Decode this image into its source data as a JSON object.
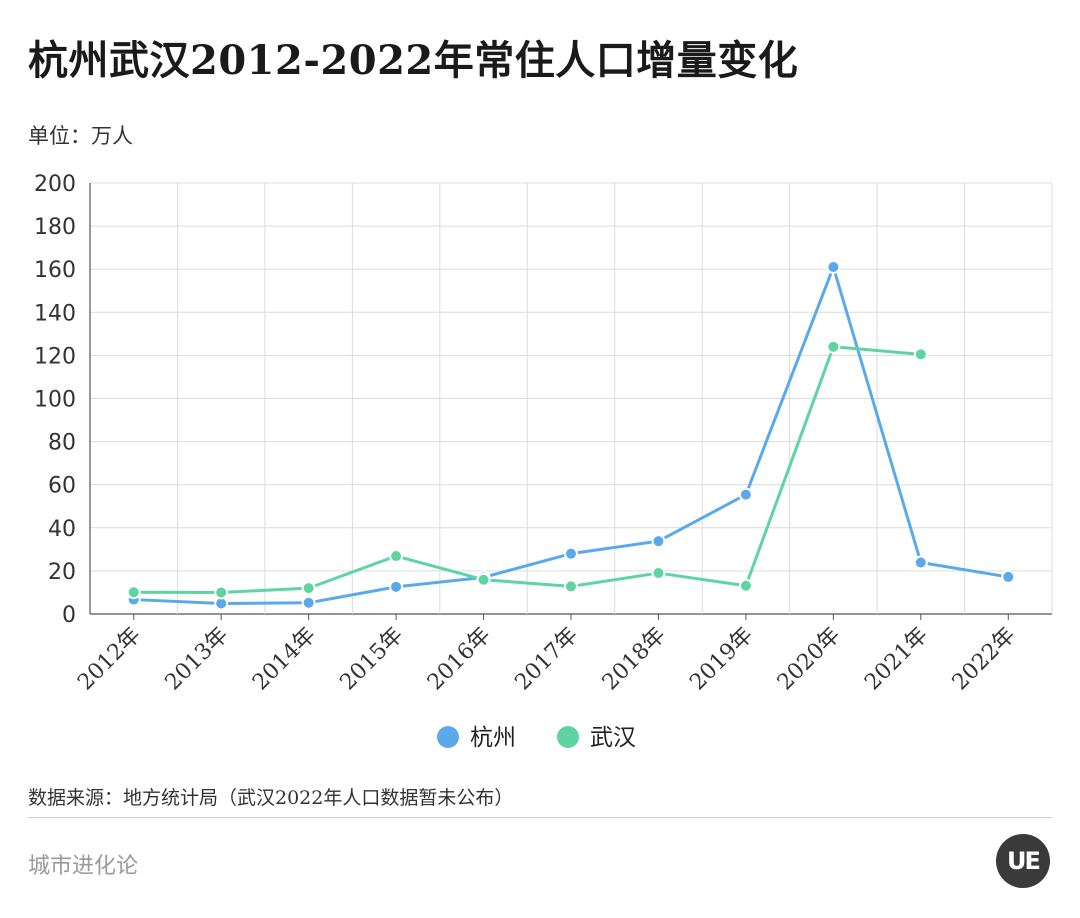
{
  "title": "杭州武汉2012-2022年常住人口增量变化",
  "unit_label": "单位：万人",
  "source": "数据来源：地方统计局（武汉2022年人口数据暂未公布）",
  "brand": "城市进化论",
  "logo_text": "UE",
  "chart_data": {
    "type": "line",
    "title": "杭州武汉2012-2022年常住人口增量变化",
    "categories": [
      "2012年",
      "2013年",
      "2014年",
      "2015年",
      "2016年",
      "2017年",
      "2018年",
      "2019年",
      "2020年",
      "2021年",
      "2022年"
    ],
    "ylim": [
      0,
      200
    ],
    "yticks": [
      0,
      20,
      40,
      60,
      80,
      100,
      120,
      140,
      160,
      180,
      200
    ],
    "grid": true,
    "legend_position": "bottom-center",
    "series": [
      {
        "name": "杭州",
        "color": "#5aaaeb",
        "values": [
          6.7,
          4.9,
          5.2,
          12.6,
          17.0,
          28.0,
          33.8,
          55.4,
          161.0,
          23.9,
          17.2
        ]
      },
      {
        "name": "武汉",
        "color": "#5fd4a3",
        "values": [
          10.1,
          10.0,
          12.0,
          26.9,
          15.9,
          12.8,
          19.0,
          13.1,
          124.0,
          120.5,
          null
        ]
      }
    ]
  }
}
